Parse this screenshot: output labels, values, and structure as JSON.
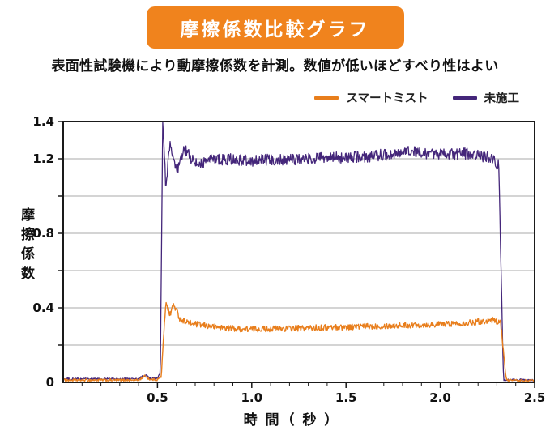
{
  "header": {
    "title": "摩擦係数比較グラフ",
    "subtitle": "表面性試験機により動摩擦係数を計測。数値が低いほどすべり性はよい"
  },
  "colors": {
    "banner": "#F0831D",
    "orange": "#E87E1C",
    "purple": "#44267A",
    "grid": "#A9A9A9",
    "axis": "#1A1A1A",
    "tick_text": "#111111"
  },
  "chart_data": {
    "type": "line",
    "title": "摩擦係数比較グラフ",
    "subtitle": "表面性試験機により動摩擦係数を計測。数値が低いほどすべり性はよい",
    "xlabel": "時 間（ 秒 ）",
    "ylabel": "摩擦係数",
    "xlim": [
      0,
      2.5
    ],
    "ylim": [
      0,
      1.4
    ],
    "x_ticks": [
      0.5,
      1.0,
      1.5,
      2.0,
      2.5
    ],
    "x_tick_labels": [
      "0.5",
      "1.0",
      "1.5",
      "2.0",
      "2.5"
    ],
    "x_minor_step": 0.1,
    "y_ticks_labeled": [
      {
        "v": 1.4,
        "label": "1.4"
      },
      {
        "v": 1.2,
        "label": "1.2"
      },
      {
        "v": 0.8,
        "label": "0.8"
      },
      {
        "v": 0.4,
        "label": "0.4"
      },
      {
        "v": 0,
        "label": "0"
      }
    ],
    "y_tick_marks": [
      0.2,
      0.4,
      0.6,
      0.8,
      1.0,
      1.2,
      1.4
    ],
    "grid_y": [
      0.2,
      0.4,
      0.6,
      0.8,
      1.0,
      1.2
    ],
    "grid": true,
    "legend_position": "top-right",
    "baseline_noise": 0.006,
    "series": [
      {
        "name": "スマートミスト",
        "color": "#E87E1C",
        "noise": 0.016,
        "width": 1.4,
        "keypoints": [
          [
            0,
            0.012
          ],
          [
            0.4,
            0.012
          ],
          [
            0.435,
            0.035
          ],
          [
            0.46,
            0.015
          ],
          [
            0.5,
            0.015
          ],
          [
            0.52,
            0.03
          ],
          [
            0.545,
            0.44
          ],
          [
            0.565,
            0.36
          ],
          [
            0.585,
            0.42
          ],
          [
            0.62,
            0.34
          ],
          [
            0.68,
            0.315
          ],
          [
            0.78,
            0.3
          ],
          [
            0.95,
            0.285
          ],
          [
            1.25,
            0.29
          ],
          [
            1.6,
            0.3
          ],
          [
            1.95,
            0.31
          ],
          [
            2.15,
            0.32
          ],
          [
            2.28,
            0.335
          ],
          [
            2.32,
            0.32
          ],
          [
            2.35,
            0.012
          ],
          [
            2.5,
            0.008
          ]
        ]
      },
      {
        "name": "未施工",
        "color": "#44267A",
        "noise": 0.032,
        "width": 1.3,
        "keypoints": [
          [
            0,
            0.018
          ],
          [
            0.4,
            0.018
          ],
          [
            0.435,
            0.04
          ],
          [
            0.46,
            0.02
          ],
          [
            0.5,
            0.02
          ],
          [
            0.515,
            0.05
          ],
          [
            0.528,
            1.37
          ],
          [
            0.545,
            1.05
          ],
          [
            0.565,
            1.27
          ],
          [
            0.6,
            1.13
          ],
          [
            0.645,
            1.25
          ],
          [
            0.7,
            1.17
          ],
          [
            0.8,
            1.2
          ],
          [
            1.0,
            1.19
          ],
          [
            1.3,
            1.2
          ],
          [
            1.6,
            1.21
          ],
          [
            1.85,
            1.24
          ],
          [
            2.0,
            1.22
          ],
          [
            2.15,
            1.23
          ],
          [
            2.28,
            1.2
          ],
          [
            2.31,
            1.16
          ],
          [
            2.335,
            0.015
          ],
          [
            2.5,
            0.01
          ]
        ]
      }
    ]
  }
}
